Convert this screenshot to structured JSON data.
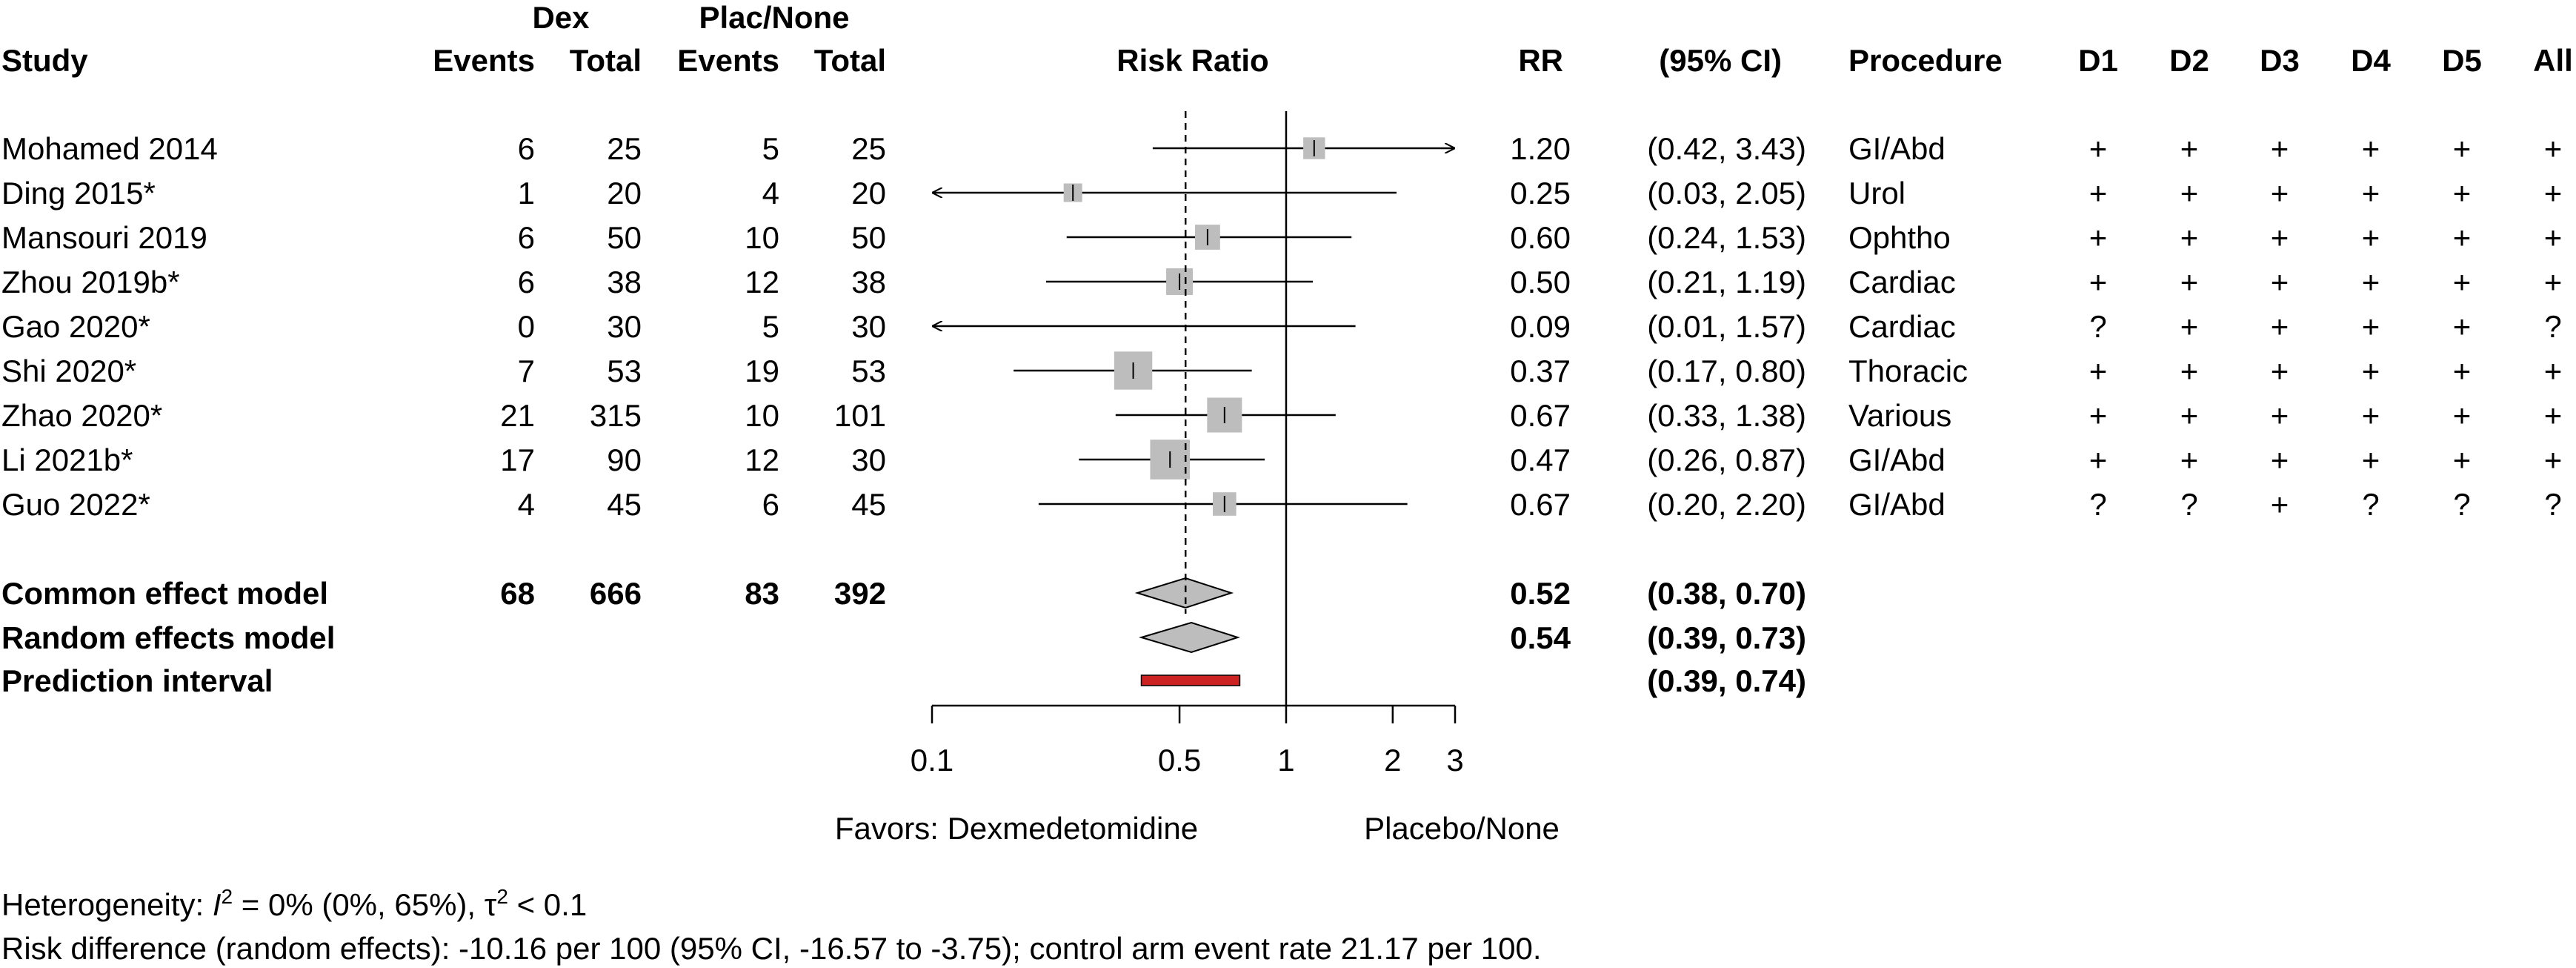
{
  "headers": {
    "dex_group": "Dex",
    "plac_group": "Plac/None",
    "study": "Study",
    "events": "Events",
    "total": "Total",
    "risk_ratio": "Risk Ratio",
    "rr": "RR",
    "ci": "(95% CI)",
    "procedure": "Procedure",
    "domains": [
      "D1",
      "D2",
      "D3",
      "D4",
      "D5",
      "All"
    ]
  },
  "chart_data": {
    "type": "forest",
    "scale": "log",
    "xlim": [
      0.1,
      3
    ],
    "null_value": 1,
    "pooled_line": 0.52,
    "x_ticks": [
      {
        "value": 0.1,
        "label": "0.1"
      },
      {
        "value": 0.5,
        "label": "0.5"
      },
      {
        "value": 1,
        "label": "1"
      },
      {
        "value": 2,
        "label": "2"
      },
      {
        "value": 3,
        "label": "3"
      }
    ],
    "studies": [
      {
        "name": "Mohamed 2014",
        "dex_events": "6",
        "dex_total": "25",
        "plac_events": "5",
        "plac_total": "25",
        "rr": 1.2,
        "lower": 0.42,
        "upper": 3.43,
        "weight": 1.4,
        "rr_text": "1.20",
        "ci_text": "(0.42, 3.43)",
        "procedure": "GI/Abd",
        "rob": [
          "+",
          "+",
          "+",
          "+",
          "+",
          "+"
        ]
      },
      {
        "name": "Ding 2015*",
        "dex_events": "1",
        "dex_total": "20",
        "plac_events": "4",
        "plac_total": "20",
        "rr": 0.25,
        "lower": 0.03,
        "upper": 2.05,
        "weight": 1.0,
        "rr_text": "0.25",
        "ci_text": "(0.03, 2.05)",
        "procedure": "Urol",
        "rob": [
          "+",
          "+",
          "+",
          "+",
          "+",
          "+"
        ]
      },
      {
        "name": "Mansouri 2019",
        "dex_events": "6",
        "dex_total": "50",
        "plac_events": "10",
        "plac_total": "50",
        "rr": 0.6,
        "lower": 0.24,
        "upper": 1.53,
        "weight": 1.8,
        "rr_text": "0.60",
        "ci_text": "(0.24, 1.53)",
        "procedure": "Ophtho",
        "rob": [
          "+",
          "+",
          "+",
          "+",
          "+",
          "+"
        ]
      },
      {
        "name": "Zhou 2019b*",
        "dex_events": "6",
        "dex_total": "38",
        "plac_events": "12",
        "plac_total": "38",
        "rr": 0.5,
        "lower": 0.21,
        "upper": 1.19,
        "weight": 2.0,
        "rr_text": "0.50",
        "ci_text": "(0.21, 1.19)",
        "procedure": "Cardiac",
        "rob": [
          "+",
          "+",
          "+",
          "+",
          "+",
          "+"
        ]
      },
      {
        "name": "Gao 2020*",
        "dex_events": "0",
        "dex_total": "30",
        "plac_events": "5",
        "plac_total": "30",
        "rr": 0.09,
        "lower": 0.01,
        "upper": 1.57,
        "weight": 0.0,
        "rr_text": "0.09",
        "ci_text": "(0.01, 1.57)",
        "procedure": "Cardiac",
        "rob": [
          "?",
          "+",
          "+",
          "+",
          "+",
          "?"
        ]
      },
      {
        "name": "Shi 2020*",
        "dex_events": "7",
        "dex_total": "53",
        "plac_events": "19",
        "plac_total": "53",
        "rr": 0.37,
        "lower": 0.17,
        "upper": 0.8,
        "weight": 3.4,
        "rr_text": "0.37",
        "ci_text": "(0.17, 0.80)",
        "procedure": "Thoracic",
        "rob": [
          "+",
          "+",
          "+",
          "+",
          "+",
          "+"
        ]
      },
      {
        "name": "Zhao 2020*",
        "dex_events": "21",
        "dex_total": "315",
        "plac_events": "10",
        "plac_total": "101",
        "rr": 0.67,
        "lower": 0.33,
        "upper": 1.38,
        "weight": 3.0,
        "rr_text": "0.67",
        "ci_text": "(0.33, 1.38)",
        "procedure": "Various",
        "rob": [
          "+",
          "+",
          "+",
          "+",
          "+",
          "+"
        ]
      },
      {
        "name": "Li 2021b*",
        "dex_events": "17",
        "dex_total": "90",
        "plac_events": "12",
        "plac_total": "30",
        "rr": 0.47,
        "lower": 0.26,
        "upper": 0.87,
        "weight": 3.6,
        "rr_text": "0.47",
        "ci_text": "(0.26, 0.87)",
        "procedure": "GI/Abd",
        "rob": [
          "+",
          "+",
          "+",
          "+",
          "+",
          "+"
        ]
      },
      {
        "name": "Guo 2022*",
        "dex_events": "4",
        "dex_total": "45",
        "plac_events": "6",
        "plac_total": "45",
        "rr": 0.67,
        "lower": 0.2,
        "upper": 2.2,
        "weight": 1.6,
        "rr_text": "0.67",
        "ci_text": "(0.20, 2.20)",
        "procedure": "GI/Abd",
        "rob": [
          "?",
          "?",
          "+",
          "?",
          "?",
          "?"
        ]
      }
    ],
    "summaries": [
      {
        "name": "Common effect model",
        "kind": "diamond",
        "dex_events": "68",
        "dex_total": "666",
        "plac_events": "83",
        "plac_total": "392",
        "rr": 0.52,
        "lower": 0.38,
        "upper": 0.7,
        "rr_text": "0.52",
        "ci_text": "(0.38, 0.70)"
      },
      {
        "name": "Random effects model",
        "kind": "diamond",
        "dex_events": "",
        "dex_total": "",
        "plac_events": "",
        "plac_total": "",
        "rr": 0.54,
        "lower": 0.39,
        "upper": 0.73,
        "rr_text": "0.54",
        "ci_text": "(0.39, 0.73)"
      },
      {
        "name": "Prediction interval",
        "kind": "bar",
        "dex_events": "",
        "dex_total": "",
        "plac_events": "",
        "plac_total": "",
        "rr": null,
        "lower": 0.39,
        "upper": 0.74,
        "rr_text": "",
        "ci_text": "(0.39, 0.74)"
      }
    ],
    "favors_left": "Favors: Dexmedetomidine",
    "favors_right": "Placebo/None"
  },
  "footer": {
    "heterogeneity_prefix": "Heterogeneity: ",
    "i2_symbol": "I",
    "i2_sup": "2",
    "i2_value": " = 0% (0%, 65%), ",
    "tau_symbol": "τ",
    "tau_sup": "2",
    "tau_value": " < 0.1",
    "risk_difference": "Risk difference (random effects): -10.16 per 100 (95% CI, -16.57 to -3.75); control arm event rate 21.17 per 100."
  },
  "colors": {
    "square": "#bdbdbd",
    "diamond": "#bdbdbd",
    "prediction": "#cc2222",
    "line": "#000000"
  }
}
